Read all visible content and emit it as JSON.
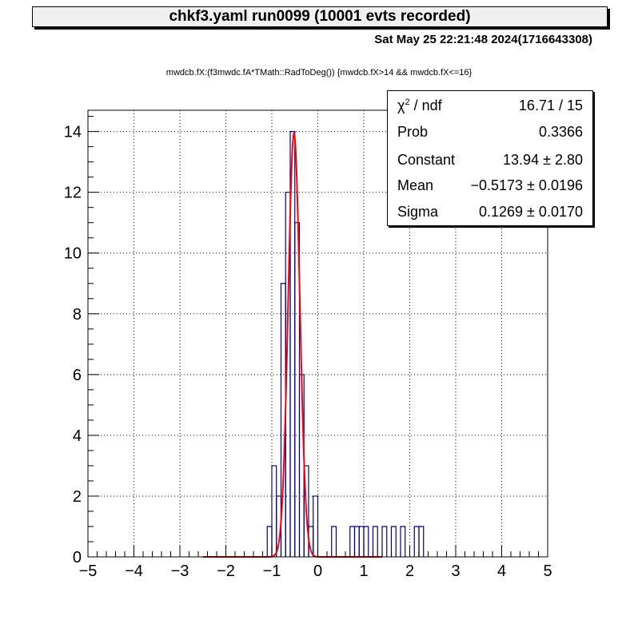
{
  "title": "chkf3.yaml  run0099 (10001 evts recorded)",
  "datestamp": "Sat May 25 22:21:48 2024(1716643308)",
  "subtitle": "mwdcb.fX:(f3mwdc.fA*TMath::RadToDeg()) {mwdcb.fX>14 && mwdcb.fX<=16}",
  "stats": [
    {
      "key": "χ² / ndf",
      "value": "16.71 / 15"
    },
    {
      "key": "Prob",
      "value": "0.3366"
    },
    {
      "key": "Constant",
      "value": "13.94 ± 2.80"
    },
    {
      "key": "Mean",
      "value": "−0.5173 ± 0.0196"
    },
    {
      "key": "Sigma",
      "value": "0.1269 ± 0.0170"
    }
  ],
  "chart_data": {
    "type": "bar",
    "title": "",
    "xlabel": "",
    "ylabel": "",
    "xlim": [
      -5,
      5
    ],
    "ylim": [
      0,
      14.7
    ],
    "grid": true,
    "x_ticks": [
      -5,
      -4,
      -3,
      -2,
      -1,
      0,
      1,
      2,
      3,
      4,
      5
    ],
    "y_ticks": [
      0,
      2,
      4,
      6,
      8,
      10,
      12,
      14
    ],
    "histogram": {
      "bin_width": 0.1,
      "bin_low_edges": [
        -1.1,
        -1.0,
        -0.9,
        -0.8,
        -0.7,
        -0.6,
        -0.5,
        -0.4,
        -0.3,
        -0.2,
        -0.1,
        0.0,
        0.3,
        0.7,
        0.8,
        0.9,
        1.0,
        1.2,
        1.4,
        1.6,
        1.8,
        2.1,
        2.2
      ],
      "counts": [
        1,
        3,
        2,
        9,
        12,
        14,
        11,
        6,
        3,
        1,
        2,
        0,
        1,
        1,
        1,
        1,
        1,
        1,
        1,
        1,
        1,
        1,
        1
      ],
      "color": "#000080"
    },
    "fit": {
      "name": "gaus",
      "constant": 13.94,
      "mean": -0.5173,
      "sigma": 0.1269,
      "range": [
        -2.5,
        1.4
      ],
      "color": "#ff0000"
    }
  }
}
